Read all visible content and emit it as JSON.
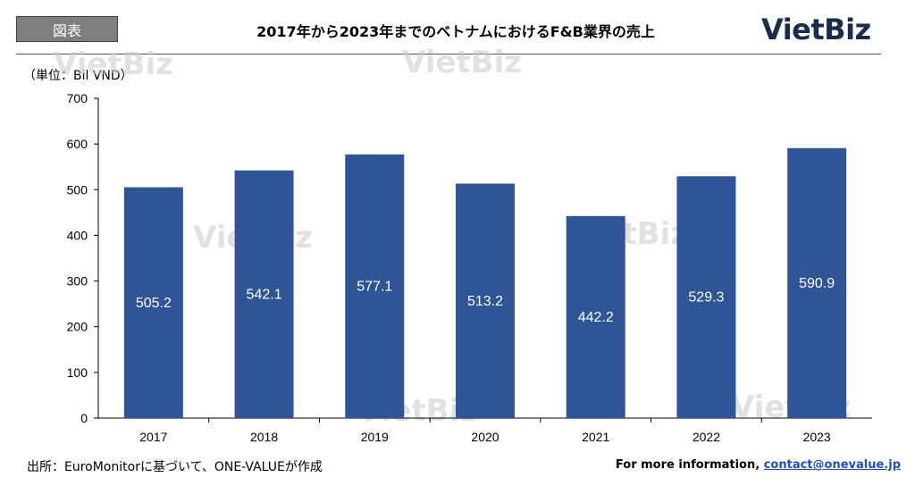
{
  "header": {
    "badge": "図表",
    "title": "2017年から2023年までのベトナムにおけるF&B業界の売上",
    "logo": "VietBiz"
  },
  "unit_label": "（単位：Bil VND）",
  "watermark": "VietBiz",
  "footer": {
    "source": "出所：EuroMonitorに基づいて、ONE-VALUEが作成",
    "info_prefix": "For more information, ",
    "contact": "contact@onevalue.jp"
  },
  "colors": {
    "bar": "#2f5597",
    "axis": "#000000"
  },
  "chart_data": {
    "type": "bar",
    "categories": [
      "2017",
      "2018",
      "2019",
      "2020",
      "2021",
      "2022",
      "2023"
    ],
    "values": [
      505.2,
      542.1,
      577.1,
      513.2,
      442.2,
      529.3,
      590.9
    ],
    "value_labels": [
      "505.2",
      "542.1",
      "577.1",
      "513.2",
      "442.2",
      "529.3",
      "590.9"
    ],
    "yticks": [
      0,
      100,
      200,
      300,
      400,
      500,
      600,
      700
    ],
    "ylim": [
      0,
      700
    ],
    "grid": false,
    "legend": "none"
  }
}
